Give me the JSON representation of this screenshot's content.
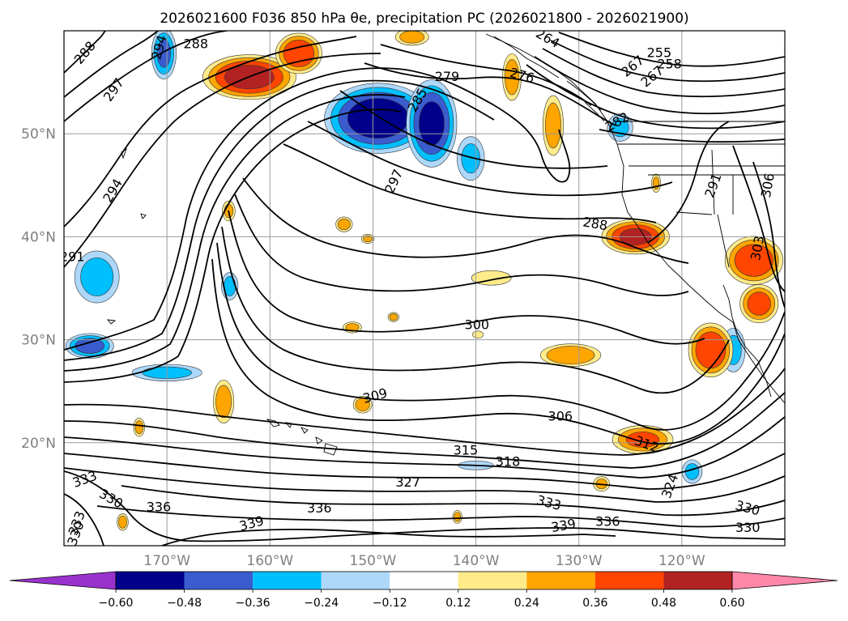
{
  "chart_data": {
    "type": "filled-contour map",
    "title": "2026021600 F036 850 hPa θe, precipitation PC (2026021800 - 2026021900)",
    "map": {
      "lon_range": [
        -180,
        -110
      ],
      "lat_range": [
        10,
        60
      ],
      "lat_ticks": [
        {
          "value": 20,
          "label": "20°N"
        },
        {
          "value": 30,
          "label": "30°N"
        },
        {
          "value": 40,
          "label": "40°N"
        },
        {
          "value": 50,
          "label": "50°N"
        }
      ],
      "lon_ticks": [
        {
          "value": -170,
          "label": "170°W"
        },
        {
          "value": -160,
          "label": "160°W"
        },
        {
          "value": -150,
          "label": "150°W"
        },
        {
          "value": -140,
          "label": "140°W"
        },
        {
          "value": -130,
          "label": "130°W"
        },
        {
          "value": -120,
          "label": "120°W"
        }
      ],
      "grid": true
    },
    "contours": {
      "variable": "850 hPa θe (K)",
      "interval": 3,
      "labels": [
        {
          "text": "288",
          "lon": -178.0,
          "lat": 57.9,
          "rot": -50
        },
        {
          "text": "288",
          "lon": -167.2,
          "lat": 58.8,
          "rot": 0
        },
        {
          "text": "294",
          "lon": -170.8,
          "lat": 58.4,
          "rot": -75
        },
        {
          "text": "297",
          "lon": -175.2,
          "lat": 54.3,
          "rot": -55
        },
        {
          "text": "294",
          "lon": -175.3,
          "lat": 44.5,
          "rot": -60
        },
        {
          "text": "291",
          "lon": -179.2,
          "lat": 38.1,
          "rot": 0
        },
        {
          "text": "279",
          "lon": -142.8,
          "lat": 55.6,
          "rot": 0
        },
        {
          "text": "276",
          "lon": -135.5,
          "lat": 55.7,
          "rot": 15
        },
        {
          "text": "285",
          "lon": -145.7,
          "lat": 53.3,
          "rot": -60
        },
        {
          "text": "297",
          "lon": -148.0,
          "lat": 45.4,
          "rot": -65
        },
        {
          "text": "264",
          "lon": -133.0,
          "lat": 59.3,
          "rot": 30
        },
        {
          "text": "255",
          "lon": -122.2,
          "lat": 57.9,
          "rot": 0
        },
        {
          "text": "258",
          "lon": -121.2,
          "lat": 56.8,
          "rot": 0
        },
        {
          "text": "267",
          "lon": -124.8,
          "lat": 56.6,
          "rot": -40
        },
        {
          "text": "267",
          "lon": -122.9,
          "lat": 55.6,
          "rot": -40
        },
        {
          "text": "282",
          "lon": -126.3,
          "lat": 51.2,
          "rot": -30
        },
        {
          "text": "288",
          "lon": -128.4,
          "lat": 41.3,
          "rot": 10
        },
        {
          "text": "291",
          "lon": -117.0,
          "lat": 45.0,
          "rot": -70
        },
        {
          "text": "306",
          "lon": -111.7,
          "lat": 45.0,
          "rot": -80
        },
        {
          "text": "303",
          "lon": -112.7,
          "lat": 38.9,
          "rot": -80
        },
        {
          "text": "300",
          "lon": -139.9,
          "lat": 31.5,
          "rot": 0
        },
        {
          "text": "309",
          "lon": -149.8,
          "lat": 24.6,
          "rot": -15
        },
        {
          "text": "306",
          "lon": -131.8,
          "lat": 22.6,
          "rot": 0
        },
        {
          "text": "312",
          "lon": -123.4,
          "lat": 19.9,
          "rot": 20
        },
        {
          "text": "315",
          "lon": -141.0,
          "lat": 19.3,
          "rot": 0
        },
        {
          "text": "318",
          "lon": -136.9,
          "lat": 18.2,
          "rot": 0
        },
        {
          "text": "327",
          "lon": -146.6,
          "lat": 16.2,
          "rot": 0
        },
        {
          "text": "333",
          "lon": -178.0,
          "lat": 16.5,
          "rot": -20
        },
        {
          "text": "330",
          "lon": -175.4,
          "lat": 14.6,
          "rot": 30
        },
        {
          "text": "336",
          "lon": -170.8,
          "lat": 13.8,
          "rot": 0
        },
        {
          "text": "336",
          "lon": -155.2,
          "lat": 13.7,
          "rot": 0
        },
        {
          "text": "339",
          "lon": -161.8,
          "lat": 12.2,
          "rot": -15
        },
        {
          "text": "333",
          "lon": -132.9,
          "lat": 14.2,
          "rot": 15
        },
        {
          "text": "339",
          "lon": -131.5,
          "lat": 12.0,
          "rot": -10
        },
        {
          "text": "336",
          "lon": -127.2,
          "lat": 12.4,
          "rot": 0
        },
        {
          "text": "324",
          "lon": -121.2,
          "lat": 15.8,
          "rot": -70
        },
        {
          "text": "330",
          "lon": -113.6,
          "lat": 13.7,
          "rot": 15
        },
        {
          "text": "330",
          "lon": -113.6,
          "lat": 11.8,
          "rot": 0
        },
        {
          "text": "333",
          "lon": -178.8,
          "lat": 12.2,
          "rot": -70
        },
        {
          "text": "330",
          "lon": -178.9,
          "lat": 11.2,
          "rot": -70
        }
      ]
    },
    "precipitation_pc": {
      "levels": [
        -0.6,
        -0.48,
        -0.36,
        -0.24,
        -0.12,
        0.12,
        0.24,
        0.36,
        0.48,
        0.6
      ],
      "colors": [
        "#9932cc",
        "#00008b",
        "#3a5ccf",
        "#00bfff",
        "#add8fa",
        "#ffffff",
        "#ffeb8a",
        "#ffa500",
        "#ff4500",
        "#b22222",
        "#ff88aa"
      ],
      "extend": "both",
      "tick_labels": [
        "−0.60",
        "−0.48",
        "−0.36",
        "−0.24",
        "−0.12",
        "0.12",
        "0.24",
        "0.36",
        "0.48",
        "0.60"
      ],
      "features": [
        {
          "sign": "neg",
          "peak": -0.55,
          "lon": -149.5,
          "lat": 51.5,
          "rx": 5.5,
          "ry": 3.6
        },
        {
          "sign": "neg",
          "peak": -0.5,
          "lon": -144.3,
          "lat": 51.0,
          "rx": 2.6,
          "ry": 4.5
        },
        {
          "sign": "neg",
          "peak": -0.36,
          "lon": -170.3,
          "lat": 57.8,
          "rx": 1.3,
          "ry": 2.7
        },
        {
          "sign": "neg",
          "peak": -0.28,
          "lon": -176.8,
          "lat": 36.1,
          "rx": 2.4,
          "ry": 2.8
        },
        {
          "sign": "neg",
          "peak": -0.4,
          "lon": -177.5,
          "lat": 29.4,
          "rx": 2.5,
          "ry": 1.3
        },
        {
          "sign": "neg",
          "peak": -0.26,
          "lon": -170.0,
          "lat": 26.8,
          "rx": 3.8,
          "ry": 0.9
        },
        {
          "sign": "neg",
          "peak": -0.26,
          "lon": -163.9,
          "lat": 35.2,
          "rx": 0.9,
          "ry": 1.5
        },
        {
          "sign": "neg",
          "peak": -0.24,
          "lon": -140.5,
          "lat": 47.6,
          "rx": 1.5,
          "ry": 2.4
        },
        {
          "sign": "neg",
          "peak": -0.24,
          "lon": -126.0,
          "lat": 50.6,
          "rx": 1.4,
          "ry": 1.5
        },
        {
          "sign": "neg",
          "peak": -0.24,
          "lon": -115.0,
          "lat": 29.0,
          "rx": 1.3,
          "ry": 2.4
        },
        {
          "sign": "neg",
          "peak": -0.24,
          "lon": -119.0,
          "lat": 17.2,
          "rx": 1.1,
          "ry": 1.3
        },
        {
          "sign": "neg",
          "peak": -0.2,
          "lon": -140.0,
          "lat": 17.8,
          "rx": 2.0,
          "ry": 0.5
        },
        {
          "sign": "pos",
          "peak": 0.52,
          "lon": -162.0,
          "lat": 55.5,
          "rx": 4.8,
          "ry": 2.3
        },
        {
          "sign": "pos",
          "peak": 0.45,
          "lon": -157.2,
          "lat": 57.8,
          "rx": 2.4,
          "ry": 2.1
        },
        {
          "sign": "pos",
          "peak": 0.48,
          "lon": -124.5,
          "lat": 40.0,
          "rx": 3.5,
          "ry": 1.8
        },
        {
          "sign": "pos",
          "peak": 0.45,
          "lon": -113.0,
          "lat": 37.7,
          "rx": 3.0,
          "ry": 2.5
        },
        {
          "sign": "pos",
          "peak": 0.4,
          "lon": -112.5,
          "lat": 33.5,
          "rx": 2.0,
          "ry": 2.0
        },
        {
          "sign": "pos",
          "peak": 0.46,
          "lon": -117.2,
          "lat": 29.0,
          "rx": 2.3,
          "ry": 2.8
        },
        {
          "sign": "pos",
          "peak": 0.36,
          "lon": -123.8,
          "lat": 20.3,
          "rx": 3.2,
          "ry": 1.5
        },
        {
          "sign": "pos",
          "peak": 0.34,
          "lon": -130.8,
          "lat": 28.5,
          "rx": 3.2,
          "ry": 1.2
        },
        {
          "sign": "pos",
          "peak": 0.22,
          "lon": -138.5,
          "lat": 36.0,
          "rx": 2.2,
          "ry": 0.8
        },
        {
          "sign": "pos",
          "peak": 0.3,
          "lon": -164.5,
          "lat": 24.0,
          "rx": 1.1,
          "ry": 2.3
        },
        {
          "sign": "pos",
          "peak": 0.3,
          "lon": -132.5,
          "lat": 50.8,
          "rx": 1.1,
          "ry": 3.2
        },
        {
          "sign": "pos",
          "peak": 0.3,
          "lon": -136.5,
          "lat": 55.5,
          "rx": 1.0,
          "ry": 2.5
        },
        {
          "sign": "pos",
          "peak": 0.28,
          "lon": -146.2,
          "lat": 59.4,
          "rx": 1.8,
          "ry": 0.9
        },
        {
          "sign": "pos",
          "peak": 0.3,
          "lon": -151.0,
          "lat": 23.7,
          "rx": 1.0,
          "ry": 0.9
        },
        {
          "sign": "pos",
          "peak": 0.28,
          "lon": -152.8,
          "lat": 41.2,
          "rx": 0.9,
          "ry": 0.8
        },
        {
          "sign": "pos",
          "peak": 0.26,
          "lon": -148.0,
          "lat": 32.2,
          "rx": 0.6,
          "ry": 0.5
        },
        {
          "sign": "pos",
          "peak": 0.24,
          "lon": -150.5,
          "lat": 39.8,
          "rx": 0.7,
          "ry": 0.5
        },
        {
          "sign": "pos",
          "peak": 0.26,
          "lon": -172.7,
          "lat": 21.5,
          "rx": 0.6,
          "ry": 1.0
        },
        {
          "sign": "pos",
          "peak": 0.28,
          "lon": -174.3,
          "lat": 12.3,
          "rx": 0.6,
          "ry": 0.9
        },
        {
          "sign": "pos",
          "peak": 0.26,
          "lon": -141.8,
          "lat": 12.8,
          "rx": 0.5,
          "ry": 0.7
        },
        {
          "sign": "pos",
          "peak": 0.26,
          "lon": -152.0,
          "lat": 31.2,
          "rx": 1.0,
          "ry": 0.6
        },
        {
          "sign": "pos",
          "peak": 0.24,
          "lon": -127.8,
          "lat": 16.0,
          "rx": 0.9,
          "ry": 0.8
        },
        {
          "sign": "pos",
          "peak": 0.22,
          "lon": -139.8,
          "lat": 30.5,
          "rx": 0.6,
          "ry": 0.4
        },
        {
          "sign": "pos",
          "peak": 0.24,
          "lon": -122.5,
          "lat": 45.2,
          "rx": 0.5,
          "ry": 1.0
        },
        {
          "sign": "pos",
          "peak": 0.24,
          "lon": -164.0,
          "lat": 42.5,
          "rx": 0.7,
          "ry": 1.1
        }
      ]
    }
  }
}
